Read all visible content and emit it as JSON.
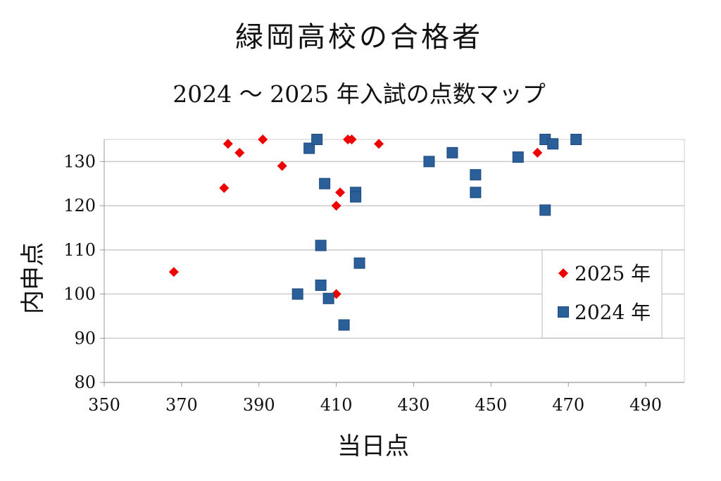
{
  "chart_data": {
    "type": "scatter",
    "title": "緑岡高校の合格者",
    "subtitle": "2024 ～ 2025 年入試の点数マップ",
    "xlabel": "当日点",
    "ylabel": "内申点",
    "xlim": [
      350,
      500
    ],
    "ylim": [
      80,
      135
    ],
    "xticks": [
      350,
      370,
      390,
      410,
      430,
      450,
      470,
      490
    ],
    "yticks": [
      80,
      90,
      100,
      110,
      120,
      130
    ],
    "grid": "horizontal",
    "legend_position": "right",
    "series": [
      {
        "name": "2025 年",
        "marker": "diamond",
        "color": "#ee0000",
        "points": [
          [
            368,
            105
          ],
          [
            381,
            124
          ],
          [
            382,
            134
          ],
          [
            385,
            132
          ],
          [
            391,
            135
          ],
          [
            396,
            129
          ],
          [
            410,
            120
          ],
          [
            411,
            123
          ],
          [
            410,
            100
          ],
          [
            413,
            135
          ],
          [
            414,
            135
          ],
          [
            421,
            134
          ],
          [
            462,
            132
          ]
        ]
      },
      {
        "name": "2024 年",
        "marker": "square",
        "color": "#2a5f9a",
        "points": [
          [
            400,
            100
          ],
          [
            403,
            133
          ],
          [
            405,
            135
          ],
          [
            406,
            111
          ],
          [
            406,
            102
          ],
          [
            407,
            125
          ],
          [
            408,
            99
          ],
          [
            412,
            93
          ],
          [
            415,
            123
          ],
          [
            415,
            122
          ],
          [
            416,
            107
          ],
          [
            434,
            130
          ],
          [
            440,
            132
          ],
          [
            446,
            127
          ],
          [
            446,
            123
          ],
          [
            457,
            131
          ],
          [
            464,
            135
          ],
          [
            464,
            119
          ],
          [
            466,
            134
          ],
          [
            472,
            135
          ]
        ]
      }
    ]
  }
}
